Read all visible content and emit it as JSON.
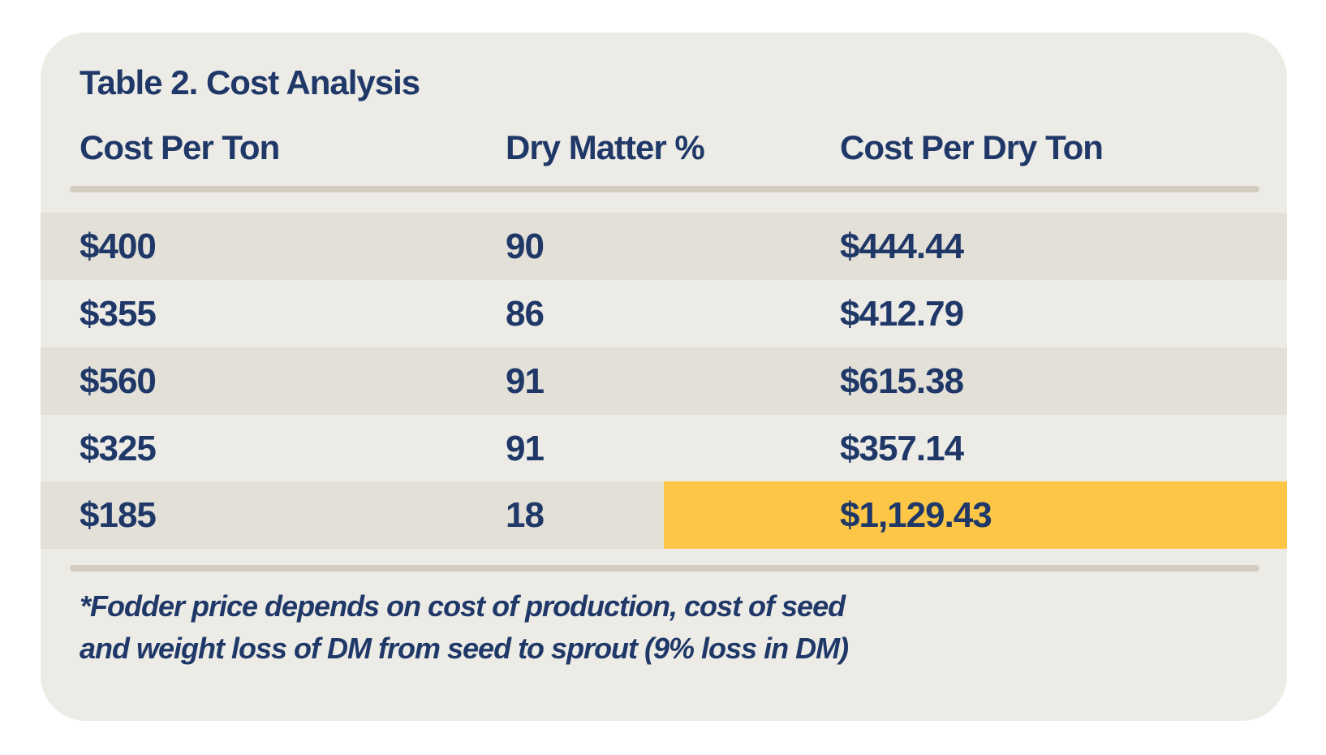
{
  "title": "Table 2. Cost Analysis",
  "columns": [
    "Cost Per Ton",
    "Dry Matter %",
    "Cost Per Dry Ton"
  ],
  "rows": [
    [
      "$400",
      "90",
      "$444.44"
    ],
    [
      "$355",
      "86",
      "$412.79"
    ],
    [
      "$560",
      "91",
      "$615.38"
    ],
    [
      "$325",
      "91",
      "$357.14"
    ],
    [
      "$185",
      "18",
      "$1,129.43"
    ]
  ],
  "highlighted_cell": {
    "row": 4,
    "column": 2,
    "color": "#fdc646"
  },
  "footnote": [
    "*Fodder price depends on cost of production, cost of seed",
    "and weight loss of DM from seed to sprout (9% loss in DM)"
  ],
  "colors": {
    "text": "#1f3868",
    "card": "#ecebe6",
    "row_alt": "#e3e0d8",
    "rule": "#d3ccc0",
    "highlight": "#fdc646"
  }
}
